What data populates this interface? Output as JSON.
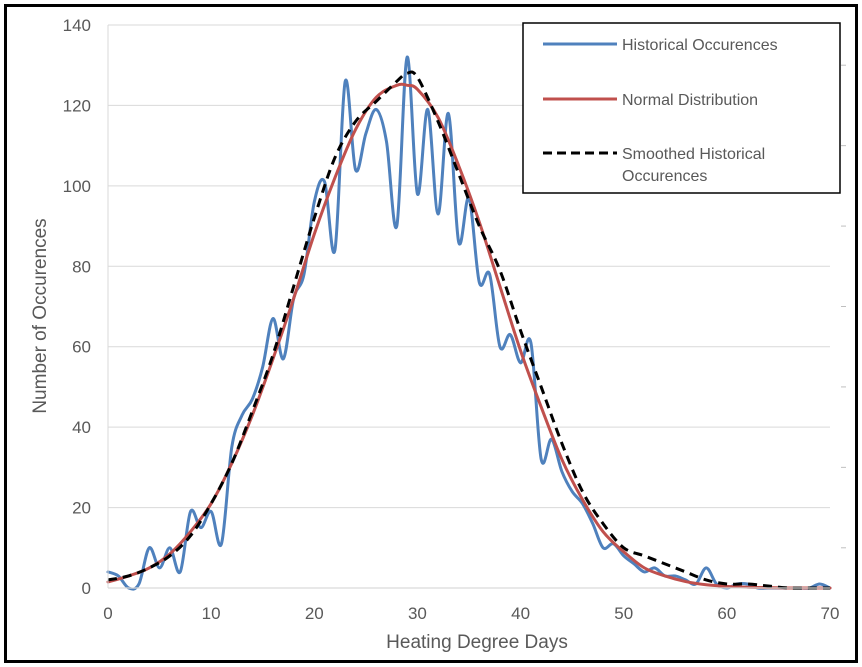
{
  "chart_data": {
    "type": "line",
    "title": "",
    "xlabel": "Heating Degree Days",
    "ylabel": "Number of Occurences",
    "xlim": [
      0,
      70
    ],
    "ylim": [
      0,
      140
    ],
    "xticks": [
      "0",
      "10",
      "20",
      "30",
      "40",
      "50",
      "60",
      "70"
    ],
    "yticks": [
      "0",
      "20",
      "40",
      "60",
      "80",
      "100",
      "120",
      "140"
    ],
    "grid": "horizontal",
    "legend_position": "top-right",
    "series": [
      {
        "name": "Historical Occurences",
        "color": "#4F81BD",
        "style": "solid",
        "x": [
          0,
          1,
          2,
          3,
          4,
          5,
          6,
          7,
          8,
          9,
          10,
          11,
          12,
          13,
          14,
          15,
          16,
          17,
          18,
          19,
          20,
          21,
          22,
          23,
          24,
          25,
          26,
          27,
          28,
          29,
          30,
          31,
          32,
          33,
          34,
          35,
          36,
          37,
          38,
          39,
          40,
          41,
          42,
          43,
          44,
          45,
          46,
          47,
          48,
          49,
          50,
          51,
          52,
          53,
          54,
          55,
          56,
          57,
          58,
          59,
          60,
          61,
          62,
          63,
          64,
          65,
          66,
          67,
          68,
          69,
          70
        ],
        "values": [
          4,
          3,
          0,
          1,
          10,
          5,
          10,
          4,
          19,
          15,
          19,
          11,
          35,
          43,
          47,
          55,
          67,
          57,
          72,
          78,
          96,
          101,
          84,
          126,
          104,
          113,
          119,
          111,
          90,
          132,
          98,
          119,
          93,
          118,
          86,
          97,
          76,
          78,
          60,
          63,
          56,
          61,
          32,
          37,
          29,
          24,
          21,
          16,
          10,
          11,
          8,
          6,
          4,
          5,
          3,
          3,
          2,
          1,
          5,
          1,
          0,
          1,
          1,
          0,
          0,
          0,
          0,
          0,
          0,
          1,
          0
        ]
      },
      {
        "name": "Normal Distribution",
        "color": "#C0504D",
        "style": "solid",
        "x": [
          0,
          2,
          4,
          6,
          8,
          10,
          12,
          14,
          16,
          18,
          20,
          22,
          24,
          26,
          28,
          29,
          30,
          32,
          34,
          36,
          38,
          40,
          42,
          44,
          46,
          48,
          50,
          52,
          54,
          56,
          58,
          60,
          62,
          64,
          66,
          68,
          70
        ],
        "values": [
          1.5,
          3,
          5,
          8.5,
          14,
          21,
          31,
          43,
          57,
          72,
          88,
          102,
          114,
          122,
          125,
          125,
          124,
          117,
          105,
          91,
          75,
          59,
          45,
          32,
          22,
          14,
          9,
          5,
          3,
          1.6,
          0.8,
          0.4,
          0.2,
          0.1,
          0,
          0,
          0
        ]
      },
      {
        "name": "Smoothed Historical Occurences",
        "color": "#000000",
        "style": "dashed",
        "x": [
          0,
          2,
          4,
          6,
          8,
          10,
          12,
          14,
          16,
          18,
          20,
          22,
          24,
          26,
          28,
          29,
          30,
          32,
          34,
          36,
          38,
          40,
          42,
          44,
          46,
          48,
          50,
          52,
          54,
          56,
          58,
          60,
          62,
          64,
          66,
          68,
          70
        ],
        "values": [
          2,
          3,
          5,
          8,
          13,
          21,
          31,
          44,
          58,
          75,
          92,
          107,
          116,
          121,
          126,
          128,
          127,
          116,
          103,
          90,
          79,
          64,
          50,
          36,
          24,
          16,
          10,
          8,
          6,
          4,
          2,
          1,
          1,
          0.5,
          0,
          0,
          0
        ]
      }
    ]
  }
}
